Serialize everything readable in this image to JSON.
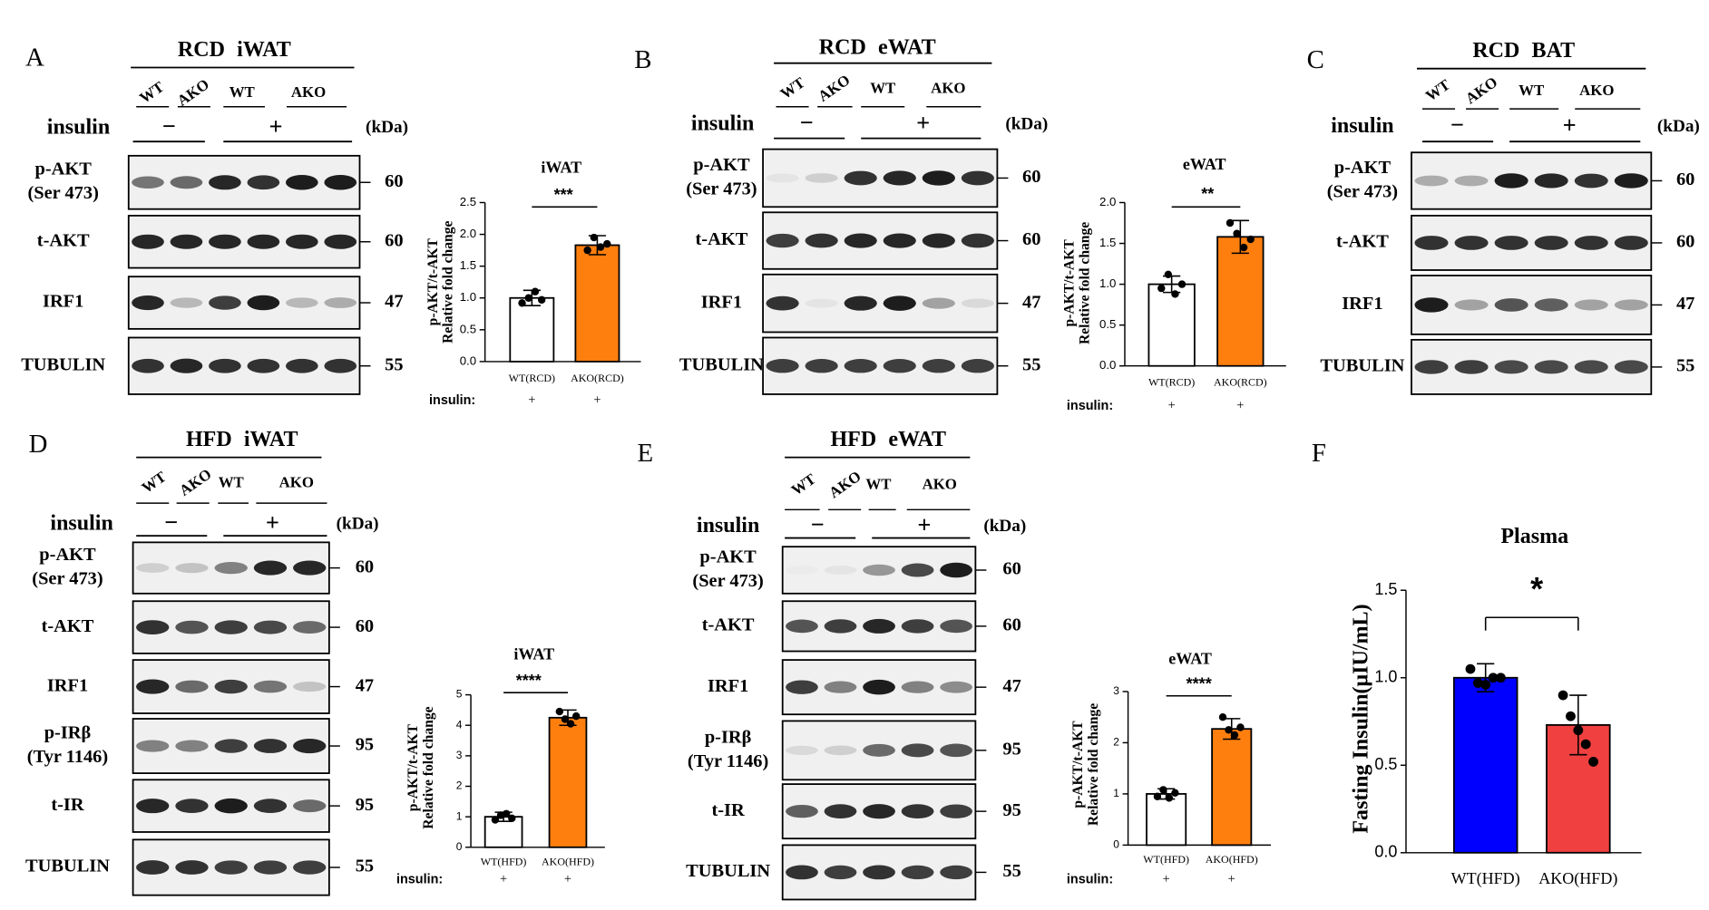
{
  "blots": [
    {
      "letter": "A",
      "title": "RCD iWAT",
      "lanes": [
        "WT",
        "AKO",
        "WT",
        "AKO"
      ],
      "insulin": "insulin",
      "minus": "−",
      "plus": "+",
      "kda_unit": "(kDa)",
      "rows": [
        {
          "label": [
            "p-AKT",
            "(Ser 473)"
          ],
          "kda": 60
        },
        {
          "label": [
            "t-AKT"
          ],
          "kda": 60
        },
        {
          "label": [
            "IRF1"
          ],
          "kda": 47
        },
        {
          "label": [
            "TUBULIN"
          ],
          "kda": 55
        }
      ]
    },
    {
      "letter": "B",
      "title": "RCD eWAT",
      "lanes": [
        "WT",
        "AKO",
        "WT",
        "AKO"
      ],
      "insulin": "insulin",
      "minus": "−",
      "plus": "+",
      "kda_unit": "(kDa)",
      "rows": [
        {
          "label": [
            "p-AKT",
            "(Ser 473)"
          ],
          "kda": 60
        },
        {
          "label": [
            "t-AKT"
          ],
          "kda": 60
        },
        {
          "label": [
            "IRF1"
          ],
          "kda": 47
        },
        {
          "label": [
            "TUBULIN"
          ],
          "kda": 55
        }
      ]
    },
    {
      "letter": "C",
      "title": "RCD BAT",
      "lanes": [
        "WT",
        "AKO",
        "WT",
        "AKO"
      ],
      "insulin": "insulin",
      "minus": "−",
      "plus": "+",
      "kda_unit": "(kDa)",
      "rows": [
        {
          "label": [
            "p-AKT",
            "(Ser 473)"
          ],
          "kda": 60
        },
        {
          "label": [
            "t-AKT"
          ],
          "kda": 60
        },
        {
          "label": [
            "IRF1"
          ],
          "kda": 47
        },
        {
          "label": [
            "TUBULIN"
          ],
          "kda": 55
        }
      ]
    },
    {
      "letter": "D",
      "title": "HFD iWAT",
      "lanes": [
        "WT",
        "AKO",
        "WT",
        "AKO"
      ],
      "insulin": "insulin",
      "minus": "−",
      "plus": "+",
      "kda_unit": "(kDa)",
      "rows": [
        {
          "label": [
            "p-AKT",
            "(Ser 473)"
          ],
          "kda": 60
        },
        {
          "label": [
            "t-AKT"
          ],
          "kda": 60
        },
        {
          "label": [
            "IRF1"
          ],
          "kda": 47
        },
        {
          "label": [
            "p-IRβ",
            "(Tyr 1146)"
          ],
          "kda": 95
        },
        {
          "label": [
            "t-IR"
          ],
          "kda": 95
        },
        {
          "label": [
            "TUBULIN"
          ],
          "kda": 55
        }
      ]
    },
    {
      "letter": "E",
      "title": "HFD eWAT",
      "lanes": [
        "WT",
        "AKO",
        "WT",
        "AKO"
      ],
      "insulin": "insulin",
      "minus": "−",
      "plus": "+",
      "kda_unit": "(kDa)",
      "rows": [
        {
          "label": [
            "p-AKT",
            "(Ser 473)"
          ],
          "kda": 60
        },
        {
          "label": [
            "t-AKT"
          ],
          "kda": 60
        },
        {
          "label": [
            "IRF1"
          ],
          "kda": 47
        },
        {
          "label": [
            "p-IRβ",
            "(Tyr 1146)"
          ],
          "kda": 95
        },
        {
          "label": [
            "t-IR"
          ],
          "kda": 95
        },
        {
          "label": [
            "TUBULIN"
          ],
          "kda": 55
        }
      ]
    }
  ],
  "chart_data": [
    {
      "type": "bar",
      "title": "iWAT",
      "ylabel": [
        "p-AKT/t-AKT",
        "Relative fold change"
      ],
      "categories": [
        "WT(RCD)",
        "AKO(RCD)"
      ],
      "values": [
        1.0,
        1.83
      ],
      "errors": [
        0.12,
        0.15
      ],
      "points": [
        [
          0.92,
          1.0,
          1.1,
          0.97
        ],
        [
          1.75,
          1.95,
          1.8,
          1.85
        ]
      ],
      "colors": [
        "#ffffff",
        "#ff7f0e"
      ],
      "significance": "***",
      "row_label": "insulin:",
      "row_values": [
        "+",
        "+"
      ],
      "ylim": [
        0,
        2.5
      ],
      "yticks": [
        {
          "value": 0,
          "label": "0.0"
        },
        0.5,
        {
          "value": 1,
          "label": "1.0"
        },
        1.5,
        {
          "value": 2,
          "label": "2.0"
        },
        2.5
      ]
    },
    {
      "type": "bar",
      "title": "eWAT",
      "ylabel": [
        "p-AKT/t-AKT",
        "Relative fold change"
      ],
      "categories": [
        "WT(RCD)",
        "AKO(RCD)"
      ],
      "values": [
        1.0,
        1.58
      ],
      "errors": [
        0.1,
        0.2
      ],
      "points": [
        [
          0.95,
          1.12,
          0.88,
          1.0
        ],
        [
          1.75,
          1.62,
          1.45,
          1.55
        ]
      ],
      "colors": [
        "#ffffff",
        "#ff7f0e"
      ],
      "significance": "**",
      "row_label": "insulin:",
      "row_values": [
        "+",
        "+"
      ],
      "ylim": [
        0,
        2.0
      ],
      "yticks": [
        {
          "value": 0,
          "label": "0.0"
        },
        0.5,
        {
          "value": 1,
          "label": "1.0"
        },
        1.5,
        {
          "value": 2,
          "label": "2.0"
        }
      ]
    },
    {
      "type": "bar",
      "title": "iWAT",
      "ylabel": [
        "p-AKT/t-AKT",
        "Relative fold change"
      ],
      "categories": [
        "WT(HFD)",
        "AKO(HFD)"
      ],
      "values": [
        1.0,
        4.25
      ],
      "errors": [
        0.15,
        0.25
      ],
      "points": [
        [
          0.9,
          1.05,
          1.1,
          0.95
        ],
        [
          4.45,
          4.2,
          4.05,
          4.3
        ]
      ],
      "colors": [
        "#ffffff",
        "#ff7f0e"
      ],
      "significance": "****",
      "row_label": "insulin:",
      "row_values": [
        "+",
        "+"
      ],
      "ylim": [
        0,
        5
      ],
      "yticks": [
        0,
        1,
        2,
        3,
        4,
        5
      ]
    },
    {
      "type": "bar",
      "title": "eWAT",
      "ylabel": [
        "p-AKT/t-AKT",
        "Relative fold change"
      ],
      "categories": [
        "WT(HFD)",
        "AKO(HFD)"
      ],
      "values": [
        1.0,
        2.27
      ],
      "errors": [
        0.1,
        0.2
      ],
      "points": [
        [
          0.95,
          1.08,
          0.92,
          1.02
        ],
        [
          2.5,
          2.25,
          2.15,
          2.3
        ]
      ],
      "colors": [
        "#ffffff",
        "#ff7f0e"
      ],
      "significance": "****",
      "row_label": "insulin:",
      "row_values": [
        "+",
        "+"
      ],
      "ylim": [
        0,
        3
      ],
      "yticks": [
        0,
        1,
        2,
        3
      ]
    },
    {
      "type": "bar",
      "letter": "F",
      "title": "Plasma",
      "ylabel": [
        "Fasting Insulin(μIU/mL)"
      ],
      "categories": [
        "WT(HFD)",
        "AKO(HFD)"
      ],
      "values": [
        1.0,
        0.73
      ],
      "errors": [
        0.08,
        0.17
      ],
      "points": [
        [
          1.05,
          0.97,
          0.96,
          1.0,
          1.0
        ],
        [
          0.9,
          0.78,
          0.7,
          0.62,
          0.52
        ]
      ],
      "colors": [
        "#0000ff",
        "#f04040"
      ],
      "significance": "*",
      "ylim": [
        0,
        1.5
      ],
      "yticks": [
        {
          "value": 0,
          "label": "0.0"
        },
        0.5,
        {
          "value": 1,
          "label": "1.0"
        },
        1.5
      ]
    }
  ]
}
